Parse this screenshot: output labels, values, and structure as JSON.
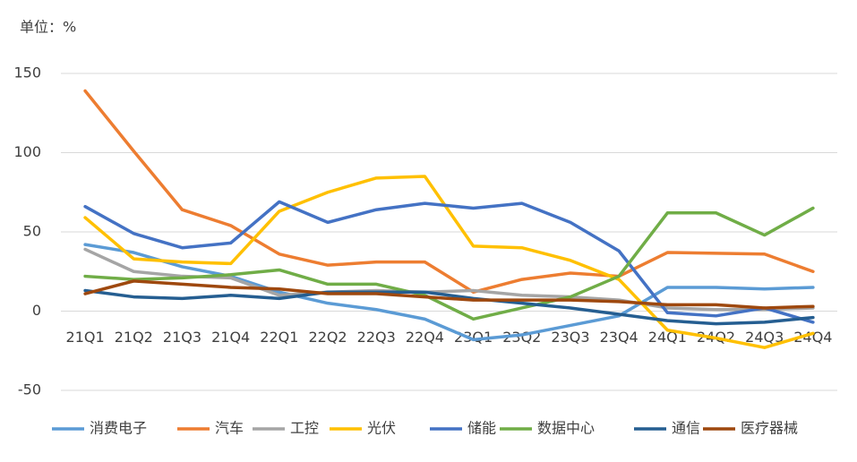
{
  "chart_data": {
    "type": "line",
    "unit_label": "单位：%",
    "categories": [
      "21Q1",
      "21Q2",
      "21Q3",
      "21Q4",
      "22Q1",
      "22Q2",
      "22Q3",
      "22Q4",
      "23Q1",
      "23Q2",
      "23Q3",
      "23Q4",
      "24Q1",
      "24Q2",
      "24Q3",
      "24Q4"
    ],
    "series": [
      {
        "name": "消费电子",
        "color": "#5B9BD5",
        "values": [
          42,
          37,
          28,
          22,
          12,
          5,
          1,
          -5,
          -18,
          -15,
          -9,
          -3,
          15,
          15,
          14,
          15
        ]
      },
      {
        "name": "汽车",
        "color": "#ED7D31",
        "values": [
          139,
          101,
          64,
          54,
          36,
          29,
          31,
          31,
          12,
          20,
          24,
          22,
          37,
          36.5,
          36,
          25
        ]
      },
      {
        "name": "工控",
        "color": "#A5A5A5",
        "values": [
          39,
          25,
          22,
          21,
          10,
          12,
          13,
          12,
          13,
          10,
          9,
          7,
          2,
          1,
          1,
          2
        ]
      },
      {
        "name": "光伏",
        "color": "#FFC000",
        "values": [
          59,
          33,
          31,
          30,
          63,
          75,
          84,
          85,
          41,
          40,
          32,
          20,
          -12,
          -17,
          -23,
          -14
        ]
      },
      {
        "name": "储能",
        "color": "#4472C4",
        "values": [
          66,
          49,
          40,
          43,
          69,
          56,
          64,
          68,
          65,
          68,
          56,
          38,
          -1,
          -3,
          2,
          -7
        ]
      },
      {
        "name": "数据中心",
        "color": "#70AD47",
        "values": [
          22,
          20,
          21,
          23,
          26,
          17,
          17,
          10,
          -5,
          2,
          9,
          22,
          62,
          62,
          48,
          65
        ]
      },
      {
        "name": "通信",
        "color": "#255E91",
        "values": [
          13,
          9,
          8,
          10,
          8,
          12,
          12,
          12,
          8,
          5,
          2,
          -2,
          -6,
          -8,
          -7,
          -4
        ]
      },
      {
        "name": "医疗器械",
        "color": "#9E480E",
        "values": [
          11,
          19,
          17,
          15,
          14,
          11,
          11,
          9,
          7,
          7,
          7,
          6,
          4,
          4,
          2,
          3
        ]
      }
    ],
    "ylim": [
      -50,
      150
    ],
    "yticks": [
      -50,
      0,
      50,
      100,
      150
    ],
    "grid": true
  }
}
